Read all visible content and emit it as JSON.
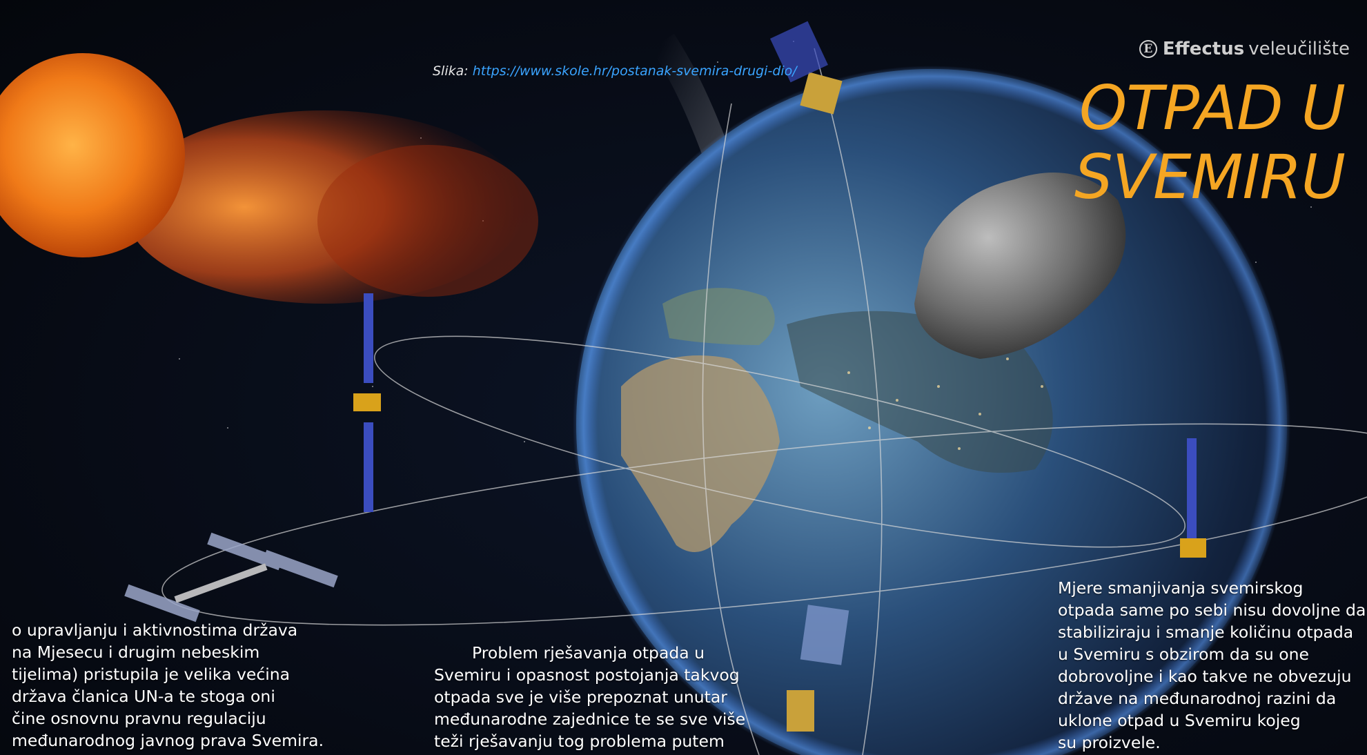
{
  "caption": {
    "label": "Slika: ",
    "url": "https://www.skole.hr/postanak-svemira-drugi-dio/"
  },
  "brand": {
    "logo_letter": "E",
    "name_bold": "Effectus",
    "name_rest": "veleučilište"
  },
  "title": {
    "lines": [
      "OTPAD U",
      "SVEMIRU"
    ]
  },
  "columns": {
    "left": [
      "o upravljanju i aktivnostima država",
      "na Mjesecu i drugim nebeskim",
      "tijelima) pristupila je velika većina",
      "država članica UN-a te stoga oni",
      "čine osnovnu pravnu regulaciju",
      "međunarodnog javnog prava Svemira."
    ],
    "middle": [
      "Problem rješavanja otpada u",
      "Svemiru i opasnost postojanja takvog",
      "otpada sve je više prepoznat unutar",
      "međunarodne zajednice te se sve više",
      "teži rješavanju tog problema putem"
    ],
    "right": [
      "Mjere smanjivanja svemirskog",
      "otpada same po sebi nisu dovoljne da",
      "stabiliziraju i smanje količinu otpada",
      "u Svemiru s obzirom da su one",
      "dobrovoljne i kao takve ne obvezuju",
      "države na međunarodnoj razini da",
      "uklone otpad u Svemiru kojeg",
      "su proizvele."
    ]
  },
  "colors": {
    "title": "#f5a623",
    "link": "#3aa4ff",
    "background": "#05070d"
  },
  "icons": [
    "effectus-logo-icon"
  ]
}
